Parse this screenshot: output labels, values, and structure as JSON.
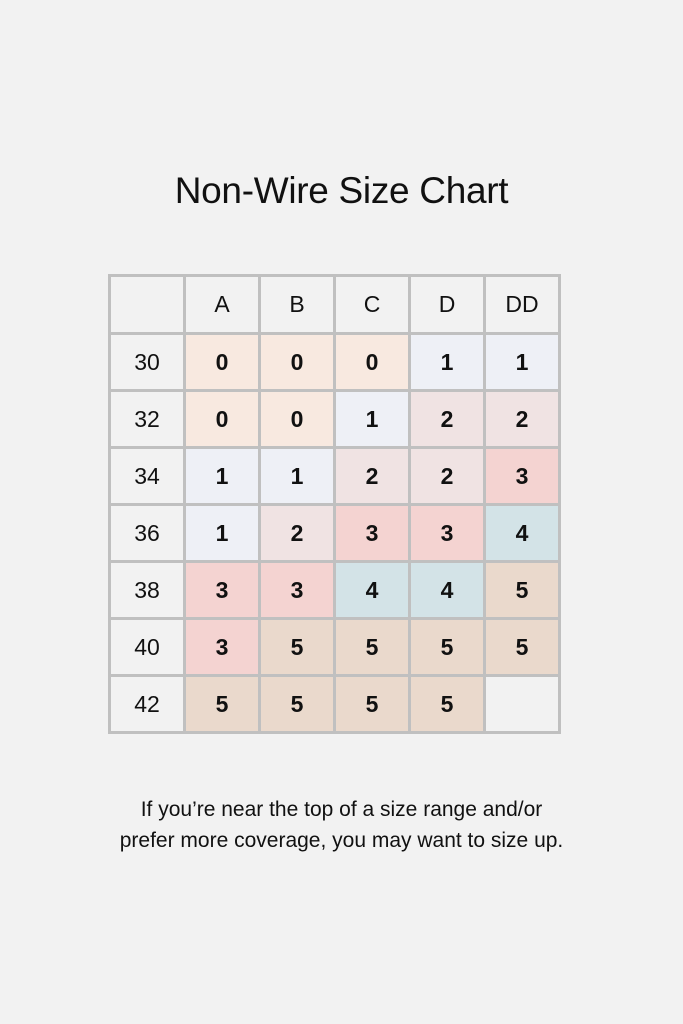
{
  "title": "Non-Wire Size Chart",
  "note_lines": [
    "If you’re near the top of a size range and/or",
    "prefer more coverage, you may want to size up."
  ],
  "colors": {
    "background": "#f2f2f2",
    "border": "#c0c0c0",
    "size_0": "#f8e9e0",
    "size_1": "#eef0f6",
    "size_2": "#f0e3e3",
    "size_3": "#f4d3d1",
    "size_4": "#d3e3e7",
    "size_5": "#ead9cc"
  },
  "chart_data": {
    "type": "table",
    "title": "Non-Wire Size Chart",
    "columns": [
      "A",
      "B",
      "C",
      "D",
      "DD"
    ],
    "rows": [
      {
        "band": "30",
        "values": [
          "0",
          "0",
          "0",
          "1",
          "1"
        ]
      },
      {
        "band": "32",
        "values": [
          "0",
          "0",
          "1",
          "2",
          "2"
        ]
      },
      {
        "band": "34",
        "values": [
          "1",
          "1",
          "2",
          "2",
          "3"
        ]
      },
      {
        "band": "36",
        "values": [
          "1",
          "2",
          "3",
          "3",
          "4"
        ]
      },
      {
        "band": "38",
        "values": [
          "3",
          "3",
          "4",
          "4",
          "5"
        ]
      },
      {
        "band": "40",
        "values": [
          "3",
          "5",
          "5",
          "5",
          "5"
        ]
      },
      {
        "band": "42",
        "values": [
          "5",
          "5",
          "5",
          "5",
          ""
        ]
      }
    ]
  }
}
